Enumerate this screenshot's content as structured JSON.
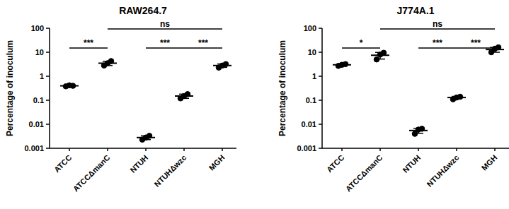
{
  "chart_data": [
    {
      "type": "scatter",
      "title": "RAW264.7",
      "y_label": "Percentage of inoculum",
      "categories": [
        "ATCC",
        "ATCCΔmanC",
        "NTUH",
        "NTUHΔwzc",
        "MGH"
      ],
      "values": [
        0.4,
        3.5,
        0.0028,
        0.15,
        2.8
      ],
      "errors": [
        0.03,
        0.7,
        0.0005,
        0.03,
        0.45
      ],
      "points": [
        [
          0.38,
          0.42,
          0.4
        ],
        [
          2.8,
          3.5,
          4.3
        ],
        [
          0.0023,
          0.0028,
          0.0033
        ],
        [
          0.12,
          0.15,
          0.18
        ],
        [
          2.3,
          2.8,
          3.2
        ]
      ],
      "color": "#000000",
      "marker": "circle",
      "log": "y",
      "grid": false,
      "ylim": [
        0.001,
        100
      ],
      "yticks": [
        0.001,
        0.01,
        0.1,
        1,
        10,
        100
      ],
      "annotations": [
        {
          "between": [
            "ATCC",
            "ATCCΔmanC"
          ],
          "label": "***"
        },
        {
          "between": [
            "ATCCΔmanC",
            "MGH"
          ],
          "label": "ns"
        },
        {
          "between": [
            "NTUH",
            "NTUHΔwzc"
          ],
          "label": "***"
        },
        {
          "between": [
            "NTUHΔwzc",
            "MGH"
          ],
          "label": "***"
        }
      ]
    },
    {
      "type": "scatter",
      "title": "J774A.1",
      "y_label": "Percentage of inoculum",
      "categories": [
        "ATCC",
        "ATCCΔmanC",
        "NTUH",
        "NTUHΔwzc",
        "MGH"
      ],
      "values": [
        3.0,
        7.5,
        0.0055,
        0.13,
        13
      ],
      "errors": [
        0.25,
        2.3,
        0.0013,
        0.015,
        3.0
      ],
      "points": [
        [
          2.7,
          3.0,
          3.2
        ],
        [
          5.0,
          8.0,
          9.5
        ],
        [
          0.004,
          0.006,
          0.0065
        ],
        [
          0.11,
          0.13,
          0.14
        ],
        [
          10,
          14,
          16
        ]
      ],
      "color": "#000000",
      "marker": "circle",
      "log": "y",
      "grid": false,
      "ylim": [
        0.001,
        100
      ],
      "yticks": [
        0.001,
        0.01,
        0.1,
        1,
        10,
        100
      ],
      "annotations": [
        {
          "between": [
            "ATCC",
            "ATCCΔmanC"
          ],
          "label": "*"
        },
        {
          "between": [
            "ATCCΔmanC",
            "MGH"
          ],
          "label": "ns"
        },
        {
          "between": [
            "NTUH",
            "NTUHΔwzc"
          ],
          "label": "***"
        },
        {
          "between": [
            "NTUHΔwzc",
            "MGH"
          ],
          "label": "***"
        }
      ]
    }
  ]
}
